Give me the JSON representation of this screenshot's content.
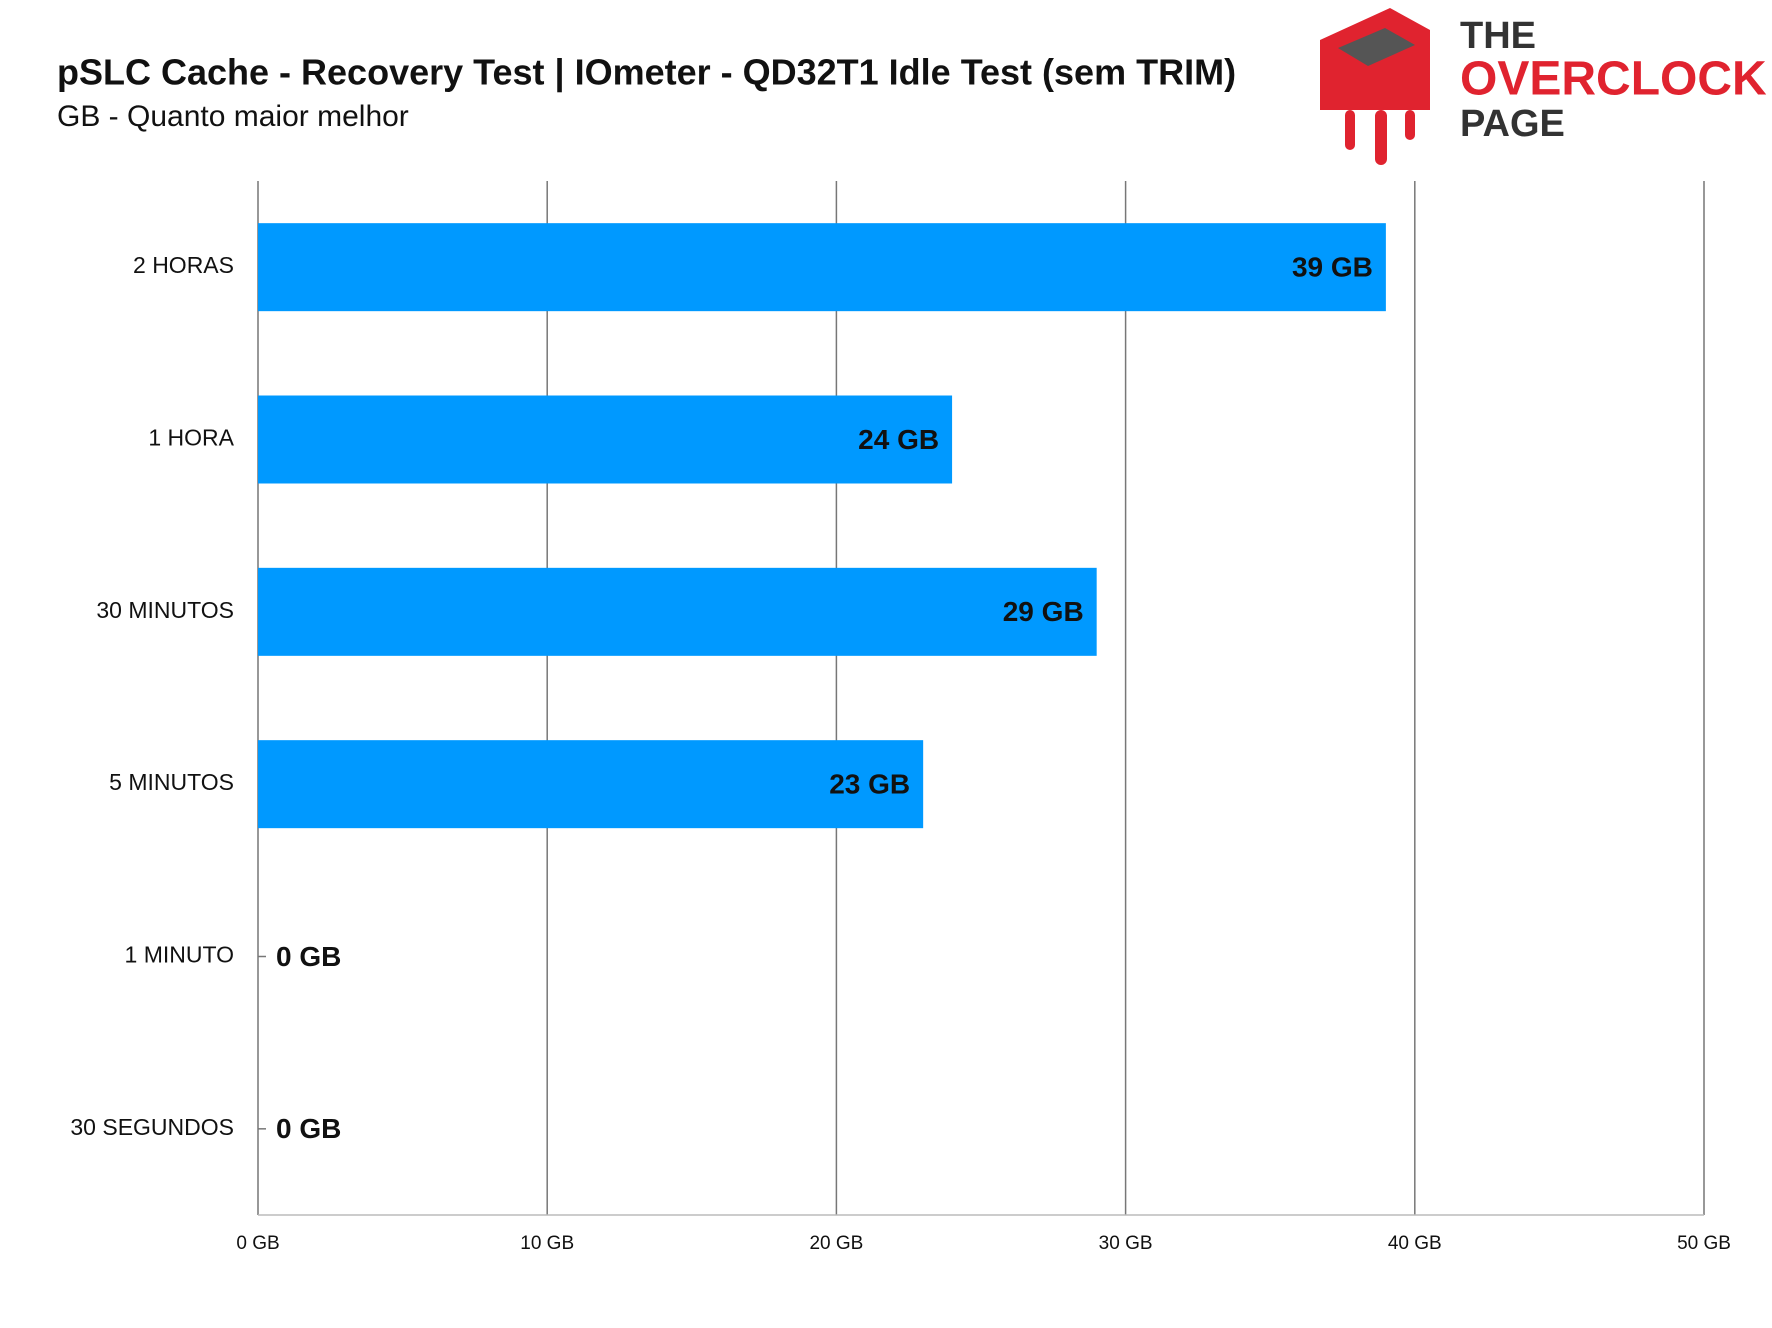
{
  "chart_data": {
    "type": "bar",
    "orientation": "horizontal",
    "title": "pSLC Cache - Recovery Test | IOmeter - QD32T1 Idle Test (sem TRIM)",
    "subtitle": "GB - Quanto maior melhor",
    "categories": [
      "2 HORAS",
      "1 HORA",
      "30 MINUTOS",
      "5 MINUTOS",
      "1 MINUTO",
      "30 SEGUNDOS"
    ],
    "values": [
      39,
      24,
      29,
      23,
      0,
      0
    ],
    "value_labels": [
      "39 GB",
      "24 GB",
      "29 GB",
      "23 GB",
      "0 GB",
      "0 GB"
    ],
    "color": "#0099ff",
    "xlim": [
      0,
      50
    ],
    "xticks": [
      {
        "value": 0,
        "label": "0 GB"
      },
      {
        "value": 10,
        "label": "10 GB"
      },
      {
        "value": 20,
        "label": "20 GB"
      },
      {
        "value": 30,
        "label": "30 GB"
      },
      {
        "value": 40,
        "label": "40 GB"
      },
      {
        "value": 50,
        "label": "50 GB"
      }
    ],
    "grid": true
  },
  "logo": {
    "line1": "THE",
    "line2": "OVERCLOCK",
    "line3": "PAGE"
  }
}
